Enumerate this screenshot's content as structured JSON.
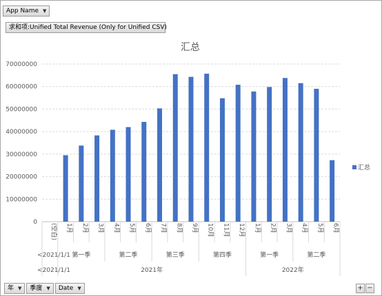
{
  "pivot_fields": {
    "app_name": "App Name",
    "value_field": "求和项:Unified Total Revenue (Only for Unified CSV)",
    "bottom": [
      "年",
      "季度",
      "Date"
    ],
    "zoom_in": "+",
    "zoom_out": "−"
  },
  "colors": {
    "bar": "#4472c4",
    "grid": "#d9d9d9",
    "text": "#595959"
  },
  "chart_data": {
    "type": "bar",
    "title": "汇总",
    "legend": {
      "label": "汇总",
      "position": "right"
    },
    "ylim": [
      0,
      70000000
    ],
    "yticks": [
      0,
      10000000,
      20000000,
      30000000,
      40000000,
      50000000,
      60000000,
      70000000
    ],
    "categories": [
      "(空白)",
      "1月",
      "2月",
      "3月",
      "4月",
      "5月",
      "6月",
      "7月",
      "8月",
      "9月",
      "10月",
      "11月",
      "12月",
      "1月",
      "2月",
      "3月",
      "4月",
      "5月",
      "6月"
    ],
    "values": [
      null,
      29500000,
      33800000,
      38300000,
      40800000,
      42000000,
      44300000,
      50300000,
      65500000,
      64300000,
      65700000,
      54800000,
      60800000,
      57800000,
      59800000,
      63800000,
      61500000,
      59000000,
      27300000
    ],
    "quarter_groups": [
      {
        "label": "<2021/1/1",
        "start": 0,
        "end": 0
      },
      {
        "label": "第一季",
        "start": 1,
        "end": 3
      },
      {
        "label": "第二季",
        "start": 4,
        "end": 6
      },
      {
        "label": "第三季",
        "start": 7,
        "end": 9
      },
      {
        "label": "第四季",
        "start": 10,
        "end": 12
      },
      {
        "label": "第一季",
        "start": 13,
        "end": 15
      },
      {
        "label": "第二季",
        "start": 16,
        "end": 18
      }
    ],
    "year_groups": [
      {
        "label": "<2021/1/1",
        "start": 0,
        "end": 0
      },
      {
        "label": "2021年",
        "start": 1,
        "end": 12
      },
      {
        "label": "2022年",
        "start": 13,
        "end": 18
      }
    ]
  }
}
